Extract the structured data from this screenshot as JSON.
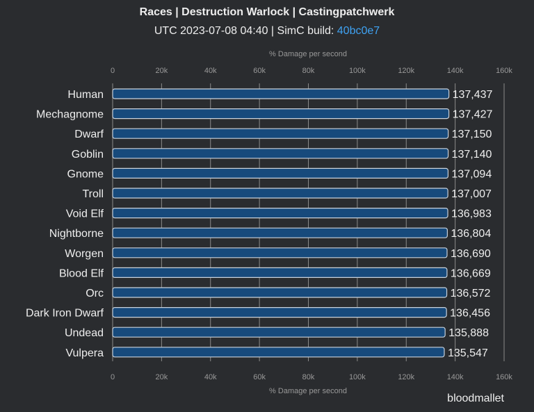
{
  "chart_data": {
    "type": "bar",
    "orientation": "horizontal",
    "title": "Races | Destruction Warlock | Castingpatchwerk",
    "subtitle_prefix": "UTC 2023-07-08 04:40 | SimC build: ",
    "subtitle_build": "40bc0e7",
    "xlabel": "% Damage per second",
    "xlim": [
      0,
      160000
    ],
    "xticks": [
      0,
      20000,
      40000,
      60000,
      80000,
      100000,
      120000,
      140000,
      160000
    ],
    "xtick_labels": [
      "0",
      "20k",
      "40k",
      "60k",
      "80k",
      "100k",
      "120k",
      "140k",
      "160k"
    ],
    "grid": true,
    "categories": [
      "Human",
      "Mechagnome",
      "Dwarf",
      "Goblin",
      "Gnome",
      "Troll",
      "Void Elf",
      "Nightborne",
      "Worgen",
      "Blood Elf",
      "Orc",
      "Dark Iron Dwarf",
      "Undead",
      "Vulpera"
    ],
    "values": [
      137437,
      137427,
      137150,
      137140,
      137094,
      137007,
      136983,
      136804,
      136690,
      136669,
      136572,
      136456,
      135888,
      135547
    ],
    "value_labels": [
      "137,437",
      "137,427",
      "137,150",
      "137,140",
      "137,094",
      "137,007",
      "136,983",
      "136,804",
      "136,690",
      "136,669",
      "136,572",
      "136,456",
      "135,888",
      "135,547"
    ],
    "colors": {
      "bar": "#174a7c",
      "bar_border": "#c9d2dc",
      "grid": "#8a8a8a",
      "link": "#3fa2f2"
    }
  },
  "credit": "bloodmallet"
}
